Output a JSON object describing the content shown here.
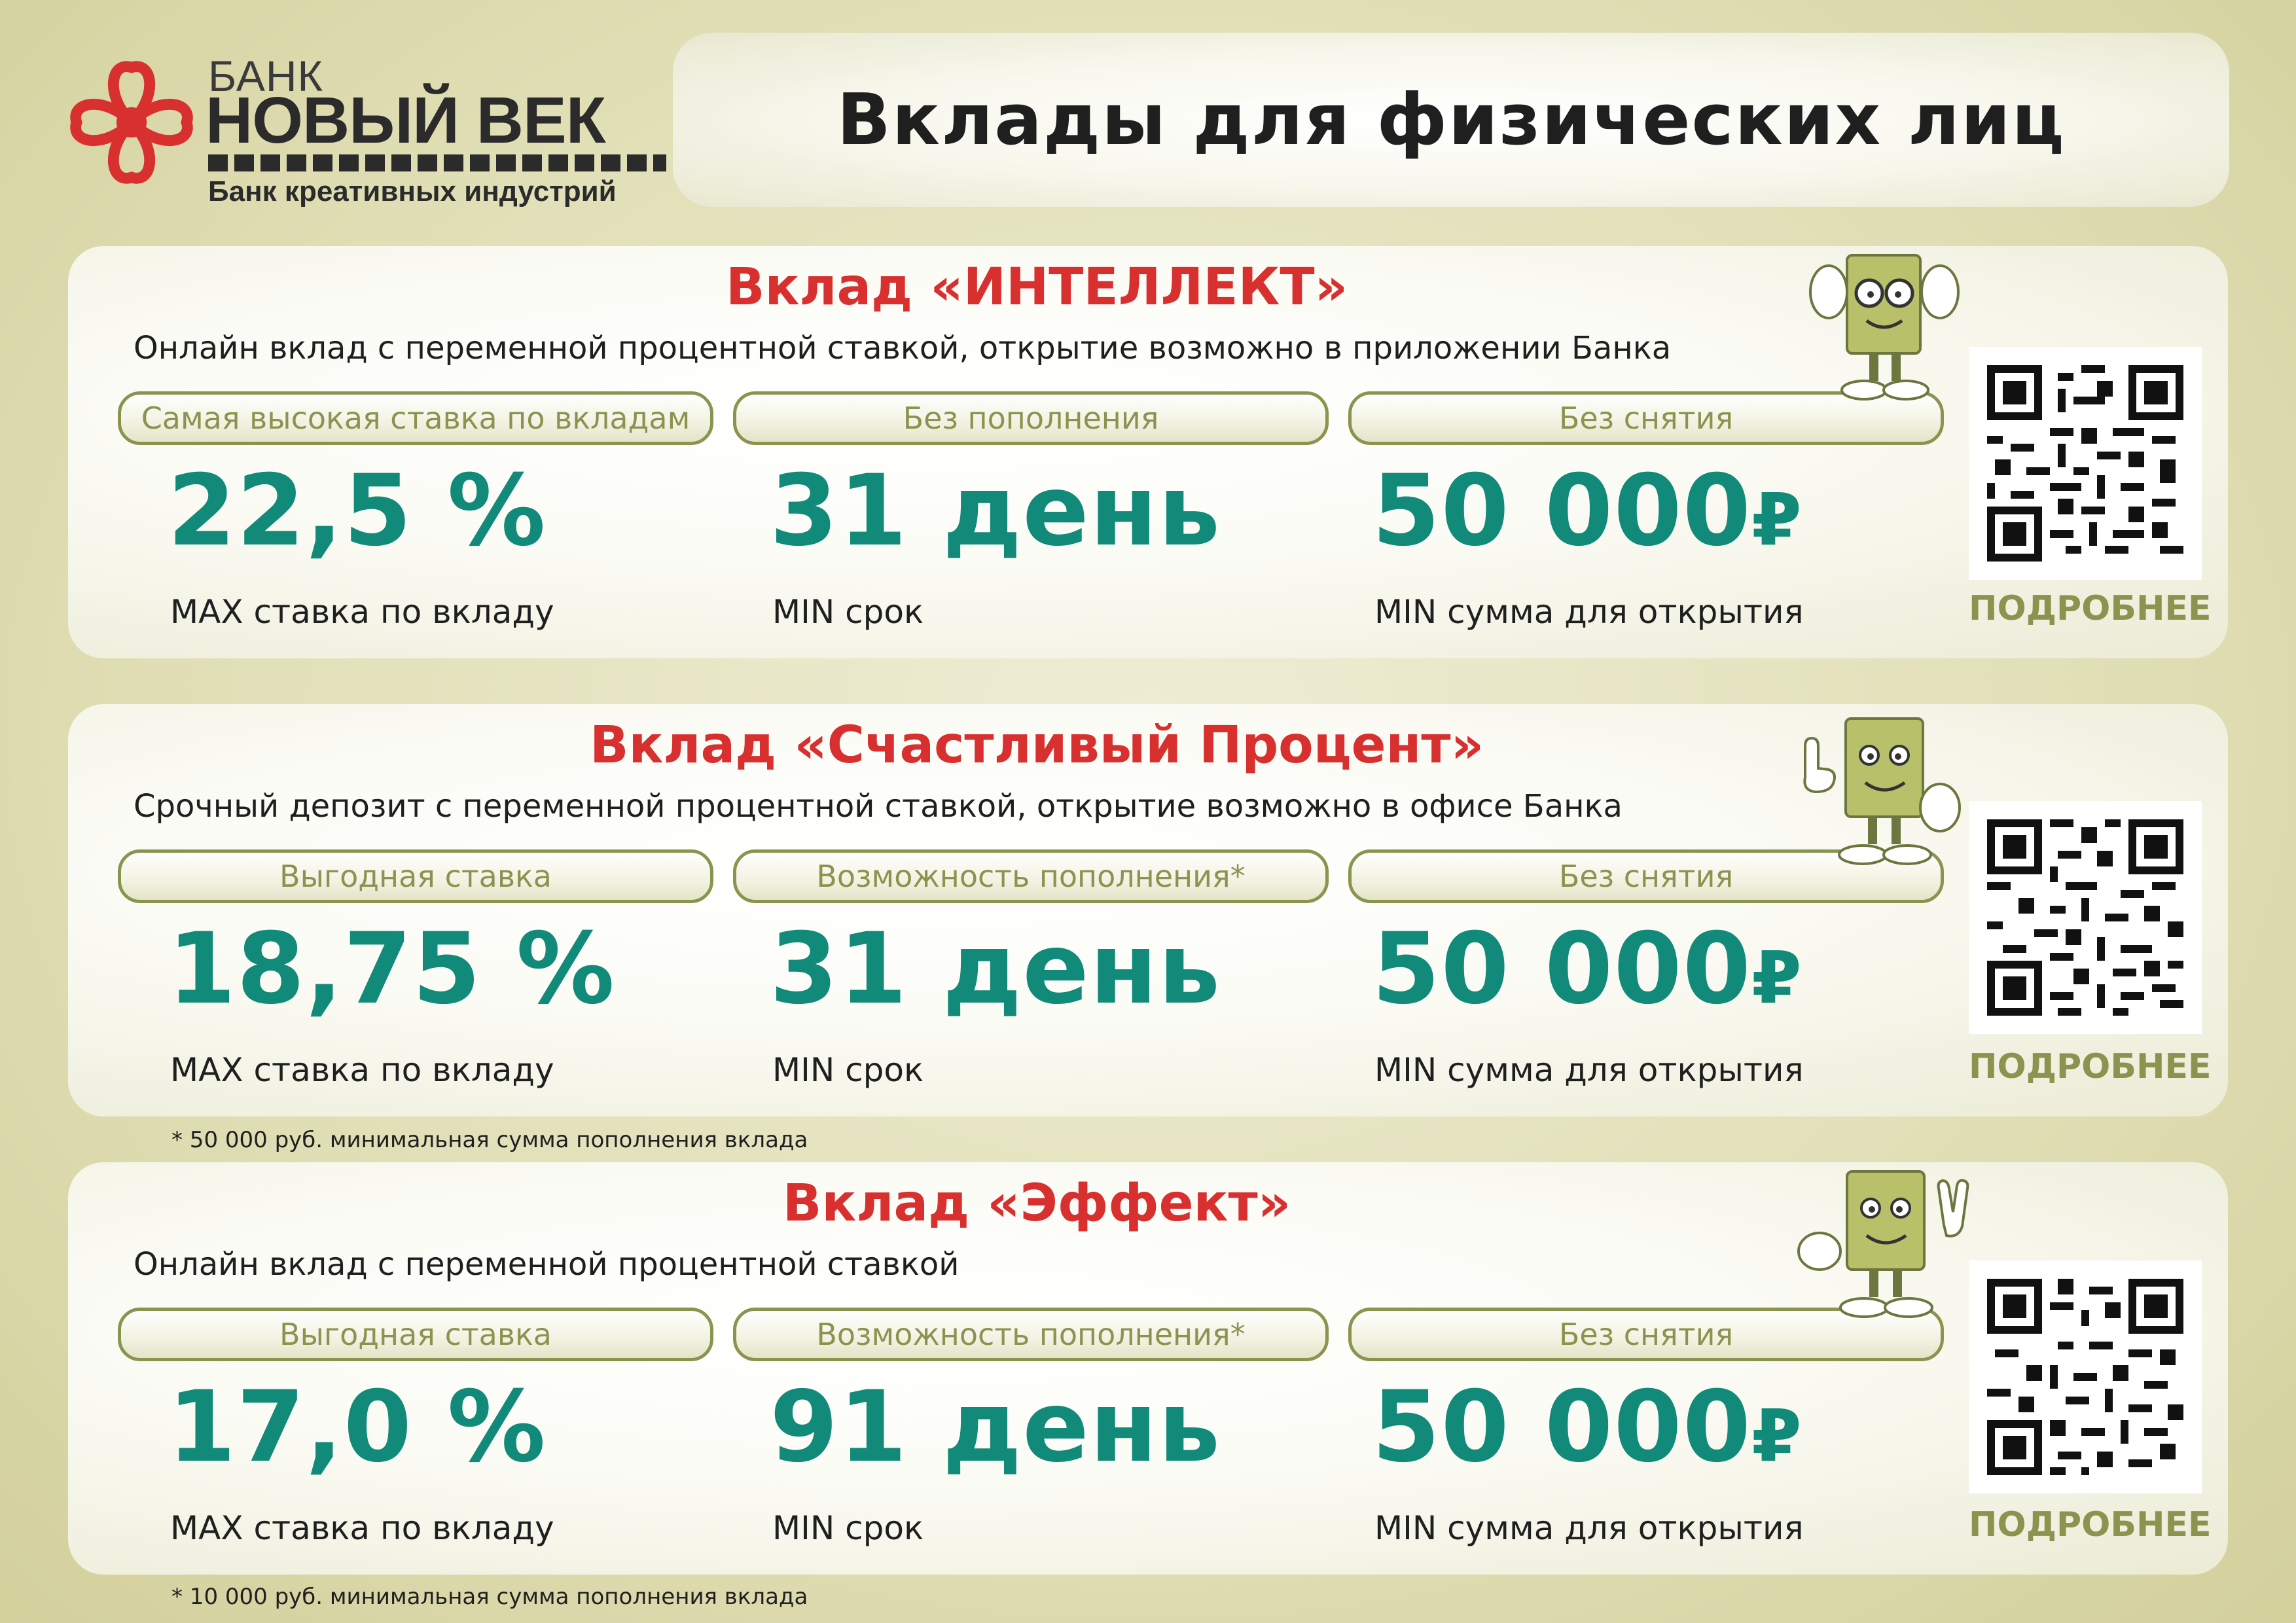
{
  "logo": {
    "bank_label": "БАНК",
    "name": "НОВЫЙ ВЕК",
    "tagline": "Банк креативных индустрий",
    "brand_color": "#d82f2f"
  },
  "header": {
    "title": "Вклады для физических лиц"
  },
  "colors": {
    "accent_red": "#d82f2f",
    "value_teal": "#128a79",
    "olive": "#8a944f"
  },
  "deposits": [
    {
      "title": "Вклад «ИНТЕЛЛЕКТ»",
      "description": "Онлайн вклад с переменной процентной ставкой, открытие возможно в приложении Банка",
      "tags": [
        "Самая высокая ставка по вкладам",
        "Без пополнения",
        "Без снятия"
      ],
      "rate": "22,5 %",
      "rate_label": "MAX ставка по вкладу",
      "term": "31 день",
      "term_label": "MIN  срок",
      "amount": "50 000",
      "currency": "₽",
      "amount_label": "MIN  сумма для открытия",
      "more": "ПОДРОБНЕЕ",
      "mascot": "robot-mascot-glasses-icon"
    },
    {
      "title": "Вклад «Счастливый Процент»",
      "description": "Срочный депозит с переменной процентной ставкой, открытие возможно в офисе Банка",
      "tags": [
        "Выгодная ставка",
        "Возможность пополнения*",
        "Без снятия"
      ],
      "rate": "18,75 %",
      "rate_label": "MAX ставка по вкладу",
      "term": "31 день",
      "term_label": "MIN  срок",
      "amount": "50 000",
      "currency": "₽",
      "amount_label": "MIN  сумма для открытия",
      "more": "ПОДРОБНЕЕ",
      "note": "* 50 000 руб. минимальная сумма пополнения вклада",
      "mascot": "robot-mascot-pointing-icon"
    },
    {
      "title": "Вклад «Эффект»",
      "description": "Онлайн вклад с переменной процентной ставкой",
      "tags": [
        "Выгодная ставка",
        "Возможность пополнения*",
        "Без снятия"
      ],
      "rate": "17,0 %",
      "rate_label": "MAX ставка по вкладу",
      "term": "91 день",
      "term_label": "MIN  срок",
      "amount": "50 000",
      "currency": "₽",
      "amount_label": "MIN  сумма для открытия",
      "more": "ПОДРОБНЕЕ",
      "note": "* 10 000 руб. минимальная сумма пополнения вклада",
      "mascot": "robot-mascot-victory-icon"
    }
  ]
}
